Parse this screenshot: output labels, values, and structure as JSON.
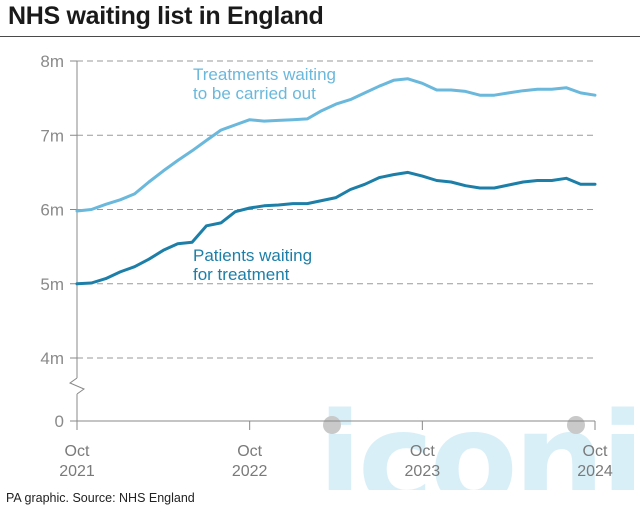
{
  "title": "NHS waiting list in England",
  "source": "PA graphic. Source: NHS England",
  "watermark": "iconic",
  "colors": {
    "treatments": "#6ab8dc",
    "patients": "#1d7fa8",
    "axis": "#888888",
    "grid": "#9a9a9a",
    "text": "#222222",
    "watermark": "#cbe9f6"
  },
  "chart_data": {
    "type": "line",
    "x_ticks": [
      {
        "label": "Oct",
        "sublabel": "2021",
        "month_index": 0
      },
      {
        "label": "Oct",
        "sublabel": "2022",
        "month_index": 12
      },
      {
        "label": "Oct",
        "sublabel": "2023",
        "month_index": 24
      },
      {
        "label": "Oct",
        "sublabel": "2024",
        "month_index": 36
      }
    ],
    "y_ticks": [
      {
        "label": "8m",
        "value": 8
      },
      {
        "label": "7m",
        "value": 7
      },
      {
        "label": "6m",
        "value": 6
      },
      {
        "label": "5m",
        "value": 5
      },
      {
        "label": "4m",
        "value": 4
      },
      {
        "label": "0",
        "value": 0
      }
    ],
    "y_axis_break": true,
    "y_range": [
      4,
      8
    ],
    "grid": "dashed horizontal",
    "series": [
      {
        "name_lines": [
          "Treatments waiting",
          "to be carried out"
        ],
        "color_key": "treatments",
        "values": [
          5.98,
          6.0,
          6.07,
          6.13,
          6.21,
          6.37,
          6.52,
          6.66,
          6.79,
          6.93,
          7.07,
          7.14,
          7.21,
          7.19,
          7.2,
          7.21,
          7.22,
          7.33,
          7.42,
          7.48,
          7.57,
          7.66,
          7.74,
          7.76,
          7.7,
          7.61,
          7.61,
          7.59,
          7.54,
          7.54,
          7.57,
          7.6,
          7.62,
          7.62,
          7.64,
          7.57,
          7.54
        ]
      },
      {
        "name_lines": [
          "Patients waiting",
          "for treatment"
        ],
        "color_key": "patients",
        "values": [
          5.0,
          5.01,
          5.07,
          5.16,
          5.23,
          5.33,
          5.45,
          5.54,
          5.56,
          5.78,
          5.82,
          5.97,
          6.02,
          6.05,
          6.06,
          6.08,
          6.08,
          6.12,
          6.16,
          6.27,
          6.34,
          6.43,
          6.47,
          6.5,
          6.45,
          6.39,
          6.37,
          6.32,
          6.29,
          6.29,
          6.33,
          6.37,
          6.39,
          6.39,
          6.42,
          6.34,
          6.34
        ]
      }
    ]
  }
}
